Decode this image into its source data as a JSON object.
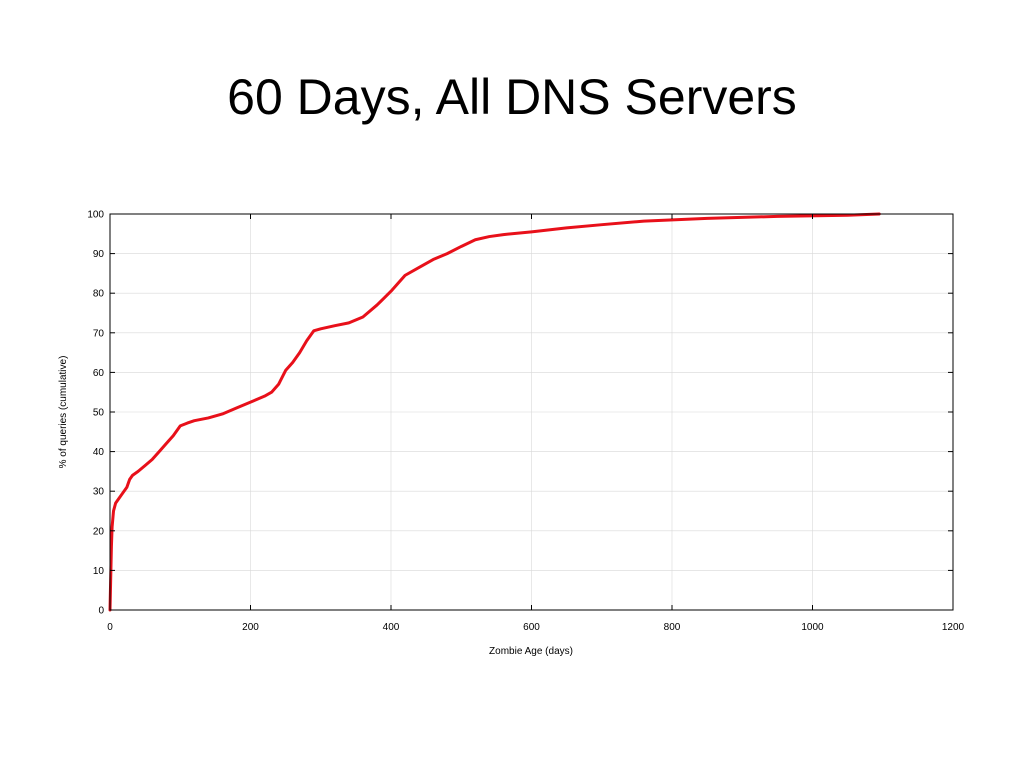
{
  "slide": {
    "title": "60 Days, All DNS Servers"
  },
  "chart_data": {
    "type": "line",
    "title": "",
    "xlabel": "Zombie Age (days)",
    "ylabel": "% of queries (cumulative)",
    "xlim": [
      0,
      1200
    ],
    "ylim": [
      0,
      100
    ],
    "xticks": [
      "0",
      "200",
      "400",
      "600",
      "800",
      "1000",
      "1200"
    ],
    "yticks": [
      "0",
      "10",
      "20",
      "30",
      "40",
      "50",
      "60",
      "70",
      "80",
      "90",
      "100"
    ],
    "grid": true,
    "legend": "none",
    "series": [
      {
        "color": "#e8101a",
        "x": [
          0,
          1,
          2,
          3,
          5,
          8,
          12,
          18,
          24,
          28,
          32,
          40,
          50,
          60,
          70,
          80,
          90,
          100,
          110,
          120,
          140,
          160,
          180,
          200,
          220,
          230,
          240,
          250,
          260,
          270,
          280,
          290,
          300,
          320,
          340,
          360,
          380,
          400,
          420,
          440,
          460,
          480,
          500,
          520,
          540,
          560,
          600,
          650,
          700,
          760,
          850,
          950,
          1050,
          1095
        ],
        "y": [
          0,
          8,
          16,
          21,
          25,
          27,
          28,
          29.5,
          31,
          33,
          34,
          35,
          36.5,
          38,
          40,
          42,
          44,
          46.5,
          47.2,
          47.8,
          48.5,
          49.5,
          51,
          52.5,
          54,
          55,
          57,
          60.5,
          62.5,
          65,
          68,
          70.5,
          71,
          71.8,
          72.5,
          74,
          77,
          80.5,
          84.5,
          86.5,
          88.5,
          90,
          91.8,
          93.5,
          94.3,
          94.8,
          95.5,
          96.5,
          97.3,
          98.2,
          98.9,
          99.4,
          99.7,
          100
        ]
      }
    ]
  }
}
